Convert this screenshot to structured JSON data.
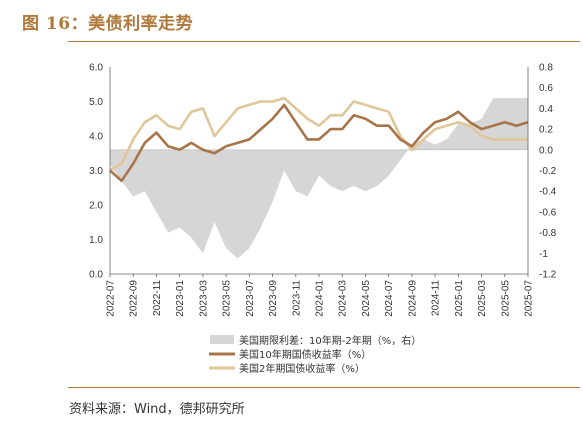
{
  "figure": {
    "title": "图 16：美债利率走势",
    "source": "资料来源：Wind，德邦研究所"
  },
  "colors": {
    "us10y": "#a8754a",
    "us2y": "#e0c79a",
    "spread": "#d6d6d6",
    "accent": "#b0793b"
  },
  "chart_data": {
    "type": "line",
    "xlabel": "",
    "ylabel": "",
    "x_ticks": [
      "2022-07",
      "2022-09",
      "2022-11",
      "2023-01",
      "2023-03",
      "2023-05",
      "2023-07",
      "2023-09",
      "2023-11",
      "2024-01",
      "2024-03",
      "2024-05",
      "2024-07",
      "2024-09",
      "2024-11",
      "2025-01",
      "2025-03",
      "2025-05",
      "2025-07"
    ],
    "ylim_left": [
      0,
      6
    ],
    "y_ticks_left": [
      "0.0",
      "1.0",
      "2.0",
      "3.0",
      "4.0",
      "5.0",
      "6.0"
    ],
    "ylim_right": [
      -1.2,
      0.8
    ],
    "y_ticks_right": [
      "-1.2",
      "-1",
      "-0.8",
      "-0.6",
      "-0.4",
      "-0.2",
      "0.0",
      "0.2",
      "0.4",
      "0.6",
      "0.8"
    ],
    "legend_position": "bottom",
    "series": [
      {
        "name": "美国期限利差：10年期-2年期（%，右）",
        "type": "area",
        "axis": "right",
        "x": [
          "2022-07",
          "2022-08",
          "2022-09",
          "2022-10",
          "2022-11",
          "2022-12",
          "2023-01",
          "2023-02",
          "2023-03",
          "2023-04",
          "2023-05",
          "2023-06",
          "2023-07",
          "2023-08",
          "2023-09",
          "2023-10",
          "2023-11",
          "2023-12",
          "2024-01",
          "2024-02",
          "2024-03",
          "2024-04",
          "2024-05",
          "2024-06",
          "2024-07",
          "2024-08",
          "2024-09",
          "2024-10",
          "2024-11",
          "2024-12",
          "2025-01",
          "2025-02",
          "2025-03",
          "2025-04",
          "2025-05",
          "2025-06",
          "2025-07"
        ],
        "values": [
          -0.15,
          -0.3,
          -0.45,
          -0.4,
          -0.6,
          -0.8,
          -0.75,
          -0.85,
          -1.0,
          -0.7,
          -0.95,
          -1.05,
          -0.95,
          -0.75,
          -0.5,
          -0.2,
          -0.4,
          -0.45,
          -0.25,
          -0.35,
          -0.4,
          -0.35,
          -0.4,
          -0.35,
          -0.25,
          -0.1,
          0.05,
          0.1,
          0.05,
          0.1,
          0.25,
          0.25,
          0.3,
          0.5,
          0.5,
          0.5,
          0.5
        ]
      },
      {
        "name": "美国10年期国债收益率（%）",
        "type": "line",
        "axis": "left",
        "x": [
          "2022-07",
          "2022-08",
          "2022-09",
          "2022-10",
          "2022-11",
          "2022-12",
          "2023-01",
          "2023-02",
          "2023-03",
          "2023-04",
          "2023-05",
          "2023-06",
          "2023-07",
          "2023-08",
          "2023-09",
          "2023-10",
          "2023-11",
          "2023-12",
          "2024-01",
          "2024-02",
          "2024-03",
          "2024-04",
          "2024-05",
          "2024-06",
          "2024-07",
          "2024-08",
          "2024-09",
          "2024-10",
          "2024-11",
          "2024-12",
          "2025-01",
          "2025-02",
          "2025-03",
          "2025-04",
          "2025-05",
          "2025-06",
          "2025-07"
        ],
        "values": [
          3.0,
          2.7,
          3.2,
          3.8,
          4.1,
          3.7,
          3.6,
          3.8,
          3.6,
          3.5,
          3.7,
          3.8,
          3.9,
          4.2,
          4.5,
          4.9,
          4.4,
          3.9,
          3.9,
          4.2,
          4.2,
          4.6,
          4.5,
          4.3,
          4.3,
          3.9,
          3.7,
          4.1,
          4.4,
          4.5,
          4.7,
          4.4,
          4.2,
          4.3,
          4.4,
          4.3,
          4.4
        ]
      },
      {
        "name": "美国2年期国债收益率（%）",
        "type": "line",
        "axis": "left",
        "x": [
          "2022-07",
          "2022-08",
          "2022-09",
          "2022-10",
          "2022-11",
          "2022-12",
          "2023-01",
          "2023-02",
          "2023-03",
          "2023-04",
          "2023-05",
          "2023-06",
          "2023-07",
          "2023-08",
          "2023-09",
          "2023-10",
          "2023-11",
          "2023-12",
          "2024-01",
          "2024-02",
          "2024-03",
          "2024-04",
          "2024-05",
          "2024-06",
          "2024-07",
          "2024-08",
          "2024-09",
          "2024-10",
          "2024-11",
          "2024-12",
          "2025-01",
          "2025-02",
          "2025-03",
          "2025-04",
          "2025-05",
          "2025-06",
          "2025-07"
        ],
        "values": [
          3.0,
          3.2,
          3.9,
          4.4,
          4.6,
          4.3,
          4.2,
          4.7,
          4.8,
          4.0,
          4.4,
          4.8,
          4.9,
          5.0,
          5.0,
          5.1,
          4.8,
          4.5,
          4.3,
          4.6,
          4.6,
          5.0,
          4.9,
          4.8,
          4.7,
          4.0,
          3.6,
          3.9,
          4.2,
          4.3,
          4.4,
          4.3,
          4.0,
          3.9,
          3.9,
          3.9,
          3.9
        ]
      }
    ]
  }
}
